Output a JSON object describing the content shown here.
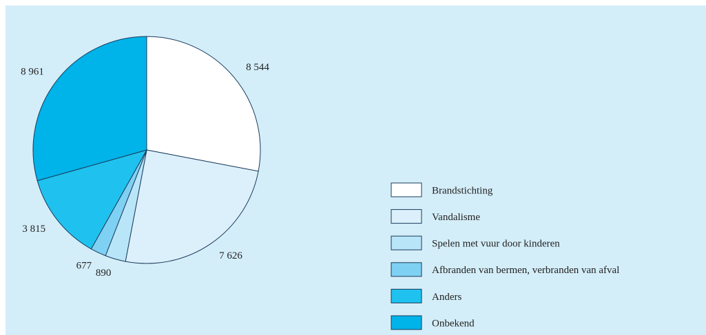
{
  "chart_data": {
    "type": "pie",
    "categories": [
      "Brandstichting",
      "Vandalisme",
      "Spelen met vuur door kinderen",
      "Afbranden van bermen, verbranden van afval",
      "Anders",
      "Onbekend"
    ],
    "values": [
      8544,
      7626,
      890,
      677,
      3815,
      8961
    ],
    "value_labels": [
      "8 544",
      "7 626",
      "890",
      "677",
      "3 815",
      "8 961"
    ],
    "colors": [
      "#ffffff",
      "#dcf0fc",
      "#b9e5f9",
      "#7fd1f3",
      "#1fc2ef",
      "#00b3e9"
    ],
    "legend": "right"
  }
}
